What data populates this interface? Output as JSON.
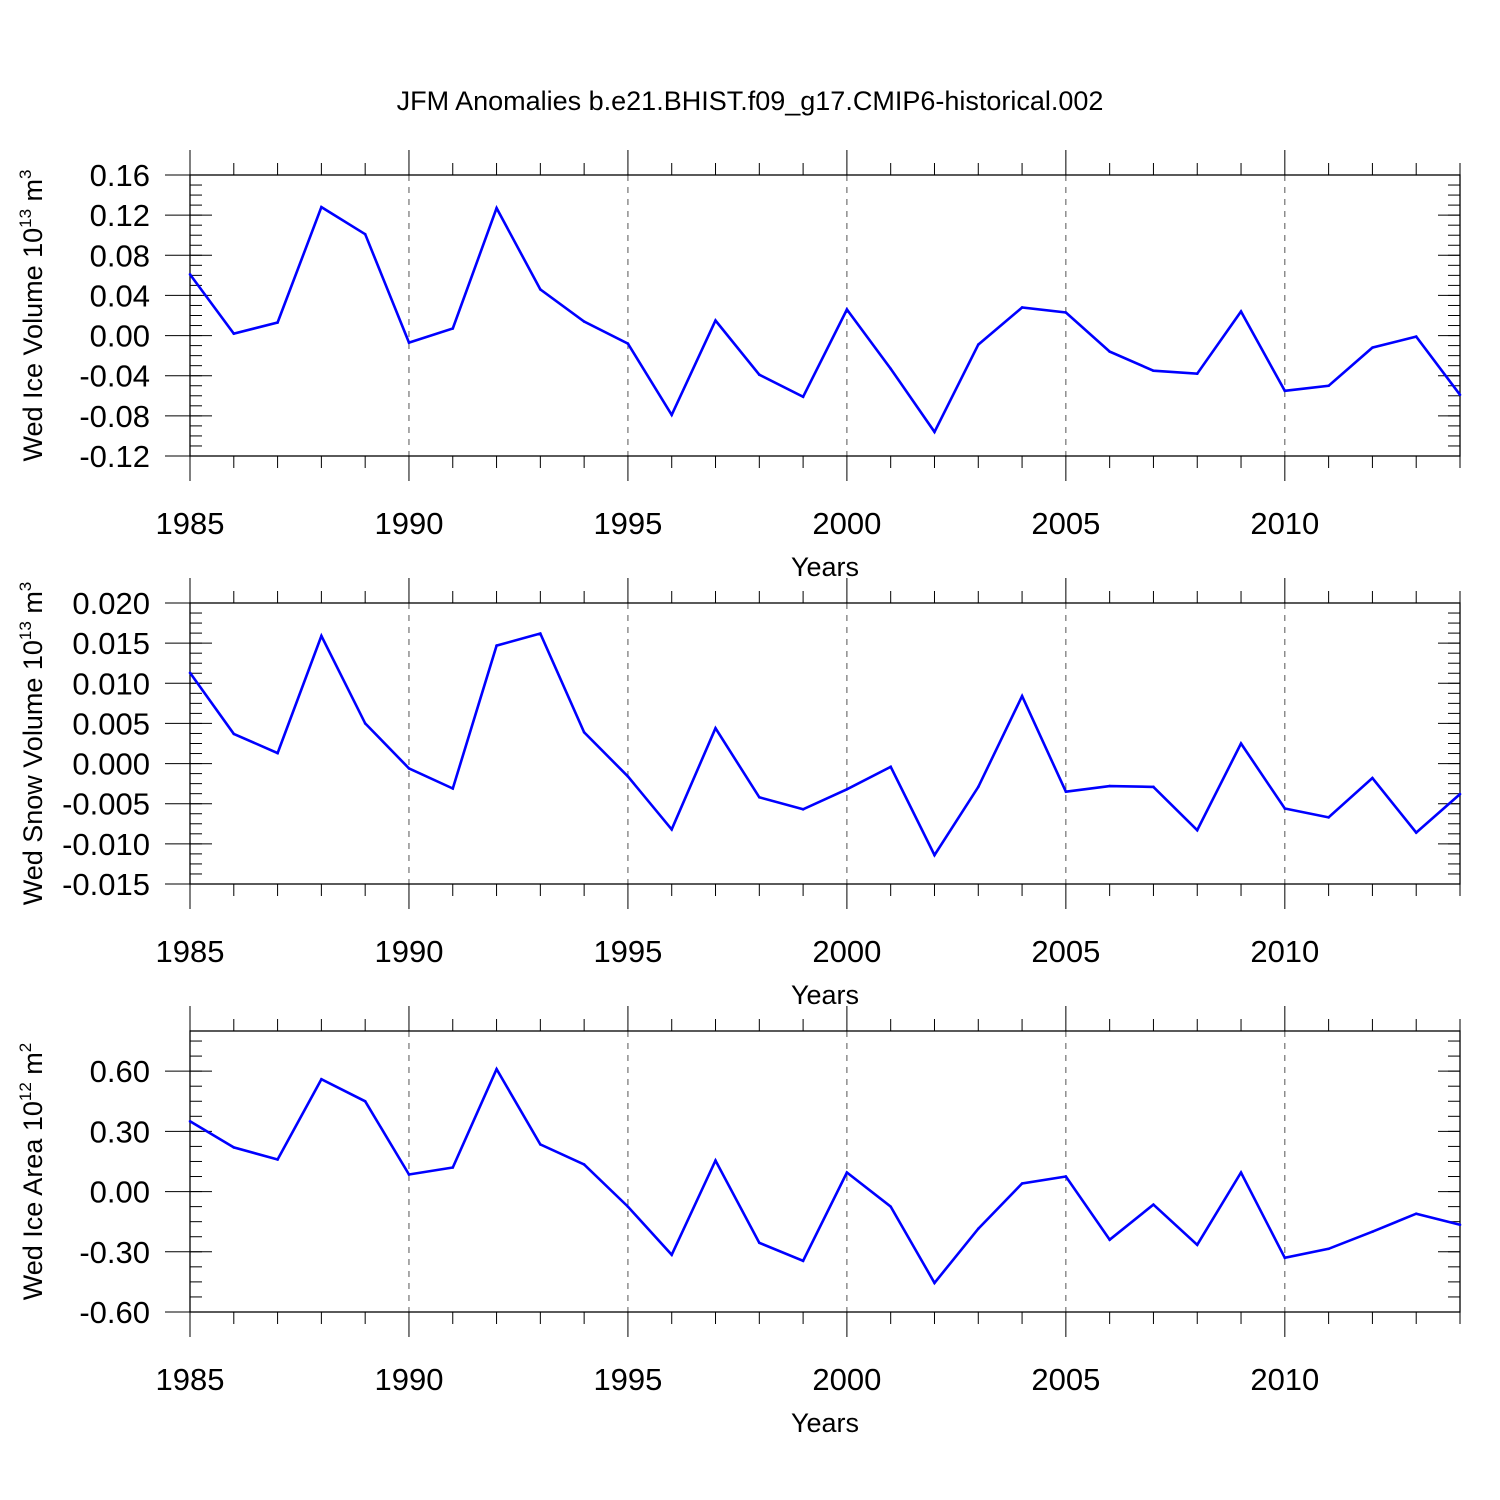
{
  "title": "JFM Anomalies b.e21.BHIST.f09_g17.CMIP6-historical.002",
  "line_color": "#0000ff",
  "chart_data": [
    {
      "type": "line",
      "ylabel": "Wed Ice Volume 10",
      "ylabel_exp": "13",
      "ylabel_unit": " m",
      "ylabel_unit_exp": "3",
      "xlabel": "Years",
      "xlim": [
        1985,
        2014
      ],
      "ylim": [
        -0.12,
        0.16
      ],
      "yticks": [
        -0.12,
        -0.08,
        -0.04,
        0.0,
        0.04,
        0.08,
        0.12,
        0.16
      ],
      "ytick_labels": [
        "-0.12",
        "-0.08",
        "-0.04",
        "0.00",
        "0.04",
        "0.08",
        "0.12",
        "0.16"
      ],
      "xticks": [
        1985,
        1990,
        1995,
        2000,
        2005,
        2010
      ],
      "xtick_labels": [
        "1985",
        "1990",
        "1995",
        "2000",
        "2005",
        "2010"
      ],
      "grid": "vertical dashed at major x ticks",
      "x": [
        1985,
        1986,
        1987,
        1988,
        1989,
        1990,
        1991,
        1992,
        1993,
        1994,
        1995,
        1996,
        1997,
        1998,
        1999,
        2000,
        2001,
        2002,
        2003,
        2004,
        2005,
        2006,
        2007,
        2008,
        2009,
        2010,
        2011,
        2012,
        2013,
        2014
      ],
      "values": [
        0.061,
        0.002,
        0.013,
        0.128,
        0.101,
        -0.007,
        0.007,
        0.127,
        0.046,
        0.014,
        -0.008,
        -0.079,
        0.015,
        -0.039,
        -0.061,
        0.026,
        -0.033,
        -0.096,
        -0.009,
        0.028,
        0.023,
        -0.016,
        -0.035,
        -0.038,
        0.024,
        -0.055,
        -0.05,
        -0.012,
        -0.001,
        -0.059
      ]
    },
    {
      "type": "line",
      "ylabel": "Wed Snow Volume 10",
      "ylabel_exp": "13",
      "ylabel_unit": " m",
      "ylabel_unit_exp": "3",
      "xlabel": "Years",
      "xlim": [
        1985,
        2014
      ],
      "ylim": [
        -0.015,
        0.02
      ],
      "yticks": [
        -0.015,
        -0.01,
        -0.005,
        0.0,
        0.005,
        0.01,
        0.015,
        0.02
      ],
      "ytick_labels": [
        "-0.015",
        "-0.010",
        "-0.005",
        "0.000",
        "0.005",
        "0.010",
        "0.015",
        "0.020"
      ],
      "xticks": [
        1985,
        1990,
        1995,
        2000,
        2005,
        2010
      ],
      "xtick_labels": [
        "1985",
        "1990",
        "1995",
        "2000",
        "2005",
        "2010"
      ],
      "grid": "vertical dashed at major x ticks",
      "x": [
        1985,
        1986,
        1987,
        1988,
        1989,
        1990,
        1991,
        1992,
        1993,
        1994,
        1995,
        1996,
        1997,
        1998,
        1999,
        2000,
        2001,
        2002,
        2003,
        2004,
        2005,
        2006,
        2007,
        2008,
        2009,
        2010,
        2011,
        2012,
        2013,
        2014
      ],
      "values": [
        0.0113,
        0.0037,
        0.0013,
        0.0159,
        0.005,
        -0.0006,
        -0.0031,
        0.0147,
        0.0162,
        0.0039,
        -0.0016,
        -0.0082,
        0.0044,
        -0.0042,
        -0.0057,
        -0.0032,
        -0.0004,
        -0.0114,
        -0.0029,
        0.0084,
        -0.0035,
        -0.0028,
        -0.0029,
        -0.0083,
        0.0025,
        -0.0056,
        -0.0067,
        -0.0018,
        -0.0086,
        -0.0038
      ]
    },
    {
      "type": "line",
      "ylabel": "Wed Ice Area 10",
      "ylabel_exp": "12",
      "ylabel_unit": " m",
      "ylabel_unit_exp": "2",
      "xlabel": "Years",
      "xlim": [
        1985,
        2014
      ],
      "ylim": [
        -0.6,
        0.8
      ],
      "yticks": [
        -0.6,
        -0.3,
        0.0,
        0.3,
        0.6
      ],
      "ytick_labels": [
        "-0.60",
        "-0.30",
        "0.00",
        "0.30",
        "0.60"
      ],
      "xticks": [
        1985,
        1990,
        1995,
        2000,
        2005,
        2010
      ],
      "xtick_labels": [
        "1985",
        "1990",
        "1995",
        "2000",
        "2005",
        "2010"
      ],
      "grid": "vertical dashed at major x ticks",
      "x": [
        1985,
        1986,
        1987,
        1988,
        1989,
        1990,
        1991,
        1992,
        1993,
        1994,
        1995,
        1996,
        1997,
        1998,
        1999,
        2000,
        2001,
        2002,
        2003,
        2004,
        2005,
        2006,
        2007,
        2008,
        2009,
        2010,
        2011,
        2012,
        2013,
        2014
      ],
      "values": [
        0.35,
        0.22,
        0.16,
        0.56,
        0.45,
        0.085,
        0.12,
        0.61,
        0.235,
        0.135,
        -0.075,
        -0.315,
        0.155,
        -0.255,
        -0.345,
        0.095,
        -0.075,
        -0.455,
        -0.185,
        0.04,
        0.075,
        -0.24,
        -0.065,
        -0.265,
        0.095,
        -0.33,
        -0.285,
        -0.2,
        -0.11,
        -0.165
      ]
    }
  ]
}
